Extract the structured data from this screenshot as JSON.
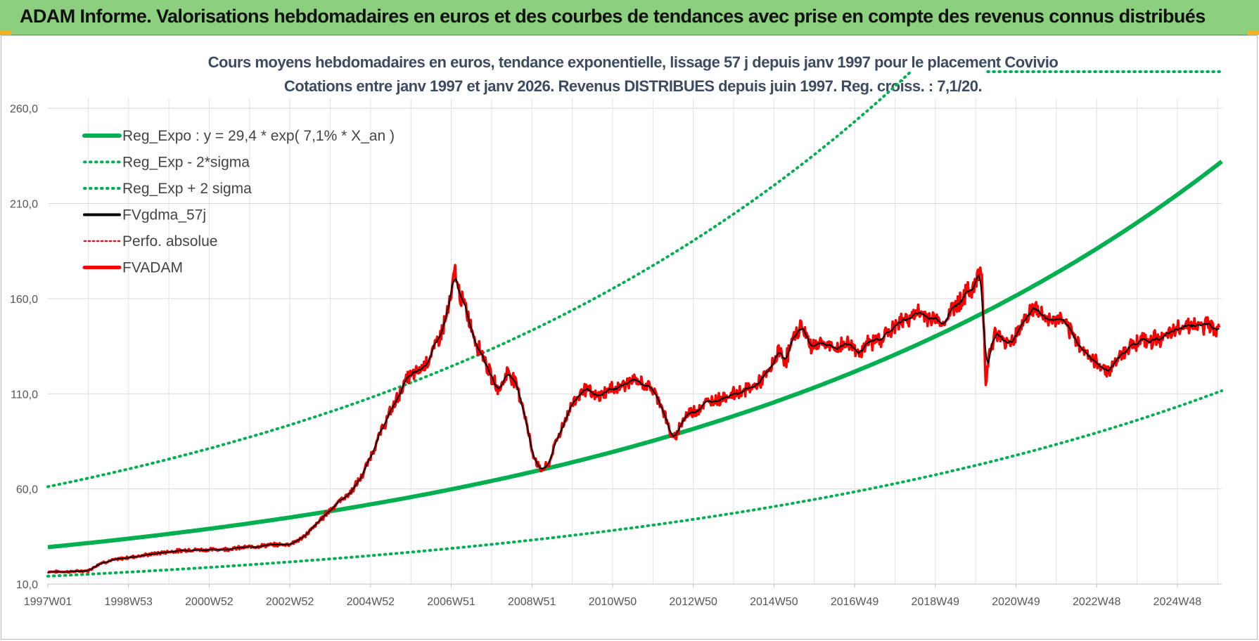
{
  "banner": {
    "title": "ADAM Informe. Valorisations hebdomadaires en euros et des courbes de tendances avec prise en compte des revenus connus distribués"
  },
  "colors": {
    "banner_bg": "#8ccf7e",
    "reg_expo": "#00b050",
    "smooth": "#000000",
    "price": "#ff0000",
    "perfo": "#e01010"
  },
  "chart_data": {
    "type": "line",
    "title": "Cours moyens hebdomadaires en euros, tendance exponentielle, lissage 57 j depuis janv 1997  pour le placement Covivio",
    "subtitle": "Cotations entre janv 1997 et janv 2026. Revenus DISTRIBUES depuis juin 1997. Reg.  croiss. : 7,1/20.",
    "xlabel": "",
    "ylabel": "",
    "xlim": [
      1997.0,
      2026.1
    ],
    "ylim": [
      10,
      280
    ],
    "yticks": [
      10,
      60,
      110,
      160,
      210,
      260
    ],
    "ytick_labels": [
      "10,0",
      "60,0",
      "110,0",
      "160,0",
      "210,0",
      "260,0"
    ],
    "xtick_labels": [
      "1997W01",
      "1998W53",
      "2000W52",
      "2002W52",
      "2004W52",
      "2006W51",
      "2008W51",
      "2010W50",
      "2012W50",
      "2014W50",
      "2016W49",
      "2018W49",
      "2020W49",
      "2022W48",
      "2024W48"
    ],
    "xtick_years": [
      1997.0,
      1999.0,
      2001.0,
      2003.0,
      2005.0,
      2007.0,
      2009.0,
      2011.0,
      2013.0,
      2015.0,
      2017.0,
      2019.0,
      2021.0,
      2023.0,
      2025.0
    ],
    "grid": true,
    "legend_position": "top-left",
    "regression": {
      "a": 29.4,
      "rate": 0.071,
      "sigma_factor": 2.08
    },
    "series": [
      {
        "name": "Reg_Expo : y = 29,4 * exp( 7,1% *  X_an )",
        "kind": "reg"
      },
      {
        "name": "Reg_Exp - 2*sigma",
        "kind": "reg_lower"
      },
      {
        "name": "Reg_Exp + 2 sigma",
        "kind": "reg_upper"
      },
      {
        "name": "FVgdma_57j",
        "kind": "smooth"
      },
      {
        "name": "Perfo. absolue",
        "kind": "perfo"
      },
      {
        "name": "FVADAM",
        "kind": "price"
      }
    ],
    "price_points": [
      [
        1997.0,
        16.5
      ],
      [
        1997.5,
        16.5
      ],
      [
        1998.0,
        17.0
      ],
      [
        1998.3,
        21.0
      ],
      [
        1998.6,
        22.5
      ],
      [
        1999.0,
        24.0
      ],
      [
        1999.5,
        25.5
      ],
      [
        2000.0,
        27.0
      ],
      [
        2000.5,
        28.0
      ],
      [
        2001.0,
        28.0
      ],
      [
        2001.5,
        28.5
      ],
      [
        2002.0,
        29.5
      ],
      [
        2002.5,
        30.5
      ],
      [
        2003.0,
        31.0
      ],
      [
        2003.3,
        34.0
      ],
      [
        2003.6,
        40.0
      ],
      [
        2003.9,
        47.0
      ],
      [
        2004.2,
        53.0
      ],
      [
        2004.5,
        58.0
      ],
      [
        2004.8,
        67.0
      ],
      [
        2005.0,
        77.0
      ],
      [
        2005.3,
        92.0
      ],
      [
        2005.6,
        105.0
      ],
      [
        2005.9,
        118.0
      ],
      [
        2006.2,
        122.0
      ],
      [
        2006.5,
        130.0
      ],
      [
        2006.8,
        145.0
      ],
      [
        2007.0,
        160.0
      ],
      [
        2007.08,
        175.0
      ],
      [
        2007.2,
        163.0
      ],
      [
        2007.4,
        152.0
      ],
      [
        2007.6,
        138.0
      ],
      [
        2007.8,
        130.0
      ],
      [
        2008.0,
        118.0
      ],
      [
        2008.2,
        112.0
      ],
      [
        2008.4,
        122.0
      ],
      [
        2008.6,
        116.0
      ],
      [
        2008.8,
        102.0
      ],
      [
        2009.0,
        80.0
      ],
      [
        2009.2,
        70.0
      ],
      [
        2009.4,
        72.0
      ],
      [
        2009.6,
        85.0
      ],
      [
        2009.8,
        95.0
      ],
      [
        2010.0,
        105.0
      ],
      [
        2010.3,
        113.0
      ],
      [
        2010.6,
        108.0
      ],
      [
        2010.9,
        112.0
      ],
      [
        2011.2,
        114.0
      ],
      [
        2011.5,
        117.0
      ],
      [
        2011.8,
        115.0
      ],
      [
        2012.0,
        112.0
      ],
      [
        2012.2,
        105.0
      ],
      [
        2012.35,
        95.0
      ],
      [
        2012.5,
        85.0
      ],
      [
        2012.7,
        95.0
      ],
      [
        2012.9,
        100.0
      ],
      [
        2013.1,
        102.0
      ],
      [
        2013.4,
        106.0
      ],
      [
        2013.7,
        108.0
      ],
      [
        2014.0,
        110.0
      ],
      [
        2014.3,
        112.0
      ],
      [
        2014.6,
        115.0
      ],
      [
        2014.9,
        122.0
      ],
      [
        2015.1,
        132.0
      ],
      [
        2015.3,
        128.0
      ],
      [
        2015.5,
        140.0
      ],
      [
        2015.7,
        146.0
      ],
      [
        2015.9,
        135.0
      ],
      [
        2016.2,
        137.0
      ],
      [
        2016.5,
        133.0
      ],
      [
        2016.8,
        137.0
      ],
      [
        2017.1,
        132.0
      ],
      [
        2017.4,
        137.0
      ],
      [
        2017.7,
        140.0
      ],
      [
        2018.0,
        145.0
      ],
      [
        2018.3,
        150.0
      ],
      [
        2018.6,
        152.0
      ],
      [
        2018.9,
        150.0
      ],
      [
        2019.2,
        147.0
      ],
      [
        2019.5,
        157.0
      ],
      [
        2019.8,
        163.0
      ],
      [
        2020.0,
        168.0
      ],
      [
        2020.15,
        176.0
      ],
      [
        2020.25,
        118.0
      ],
      [
        2020.35,
        132.0
      ],
      [
        2020.5,
        142.0
      ],
      [
        2020.7,
        137.0
      ],
      [
        2020.9,
        138.0
      ],
      [
        2021.1,
        145.0
      ],
      [
        2021.3,
        152.0
      ],
      [
        2021.5,
        155.0
      ],
      [
        2021.7,
        150.0
      ],
      [
        2021.9,
        148.0
      ],
      [
        2022.1,
        150.0
      ],
      [
        2022.3,
        143.0
      ],
      [
        2022.5,
        138.0
      ],
      [
        2022.7,
        133.0
      ],
      [
        2022.9,
        127.0
      ],
      [
        2023.1,
        125.0
      ],
      [
        2023.3,
        122.0
      ],
      [
        2023.5,
        128.0
      ],
      [
        2023.7,
        133.0
      ],
      [
        2023.9,
        136.0
      ],
      [
        2024.1,
        139.0
      ],
      [
        2024.3,
        137.0
      ],
      [
        2024.5,
        140.0
      ],
      [
        2024.7,
        139.0
      ],
      [
        2024.9,
        142.0
      ],
      [
        2025.1,
        146.0
      ],
      [
        2025.3,
        147.0
      ],
      [
        2025.5,
        145.0
      ],
      [
        2025.7,
        146.0
      ],
      [
        2025.9,
        145.0
      ],
      [
        2026.05,
        144.0
      ]
    ]
  }
}
